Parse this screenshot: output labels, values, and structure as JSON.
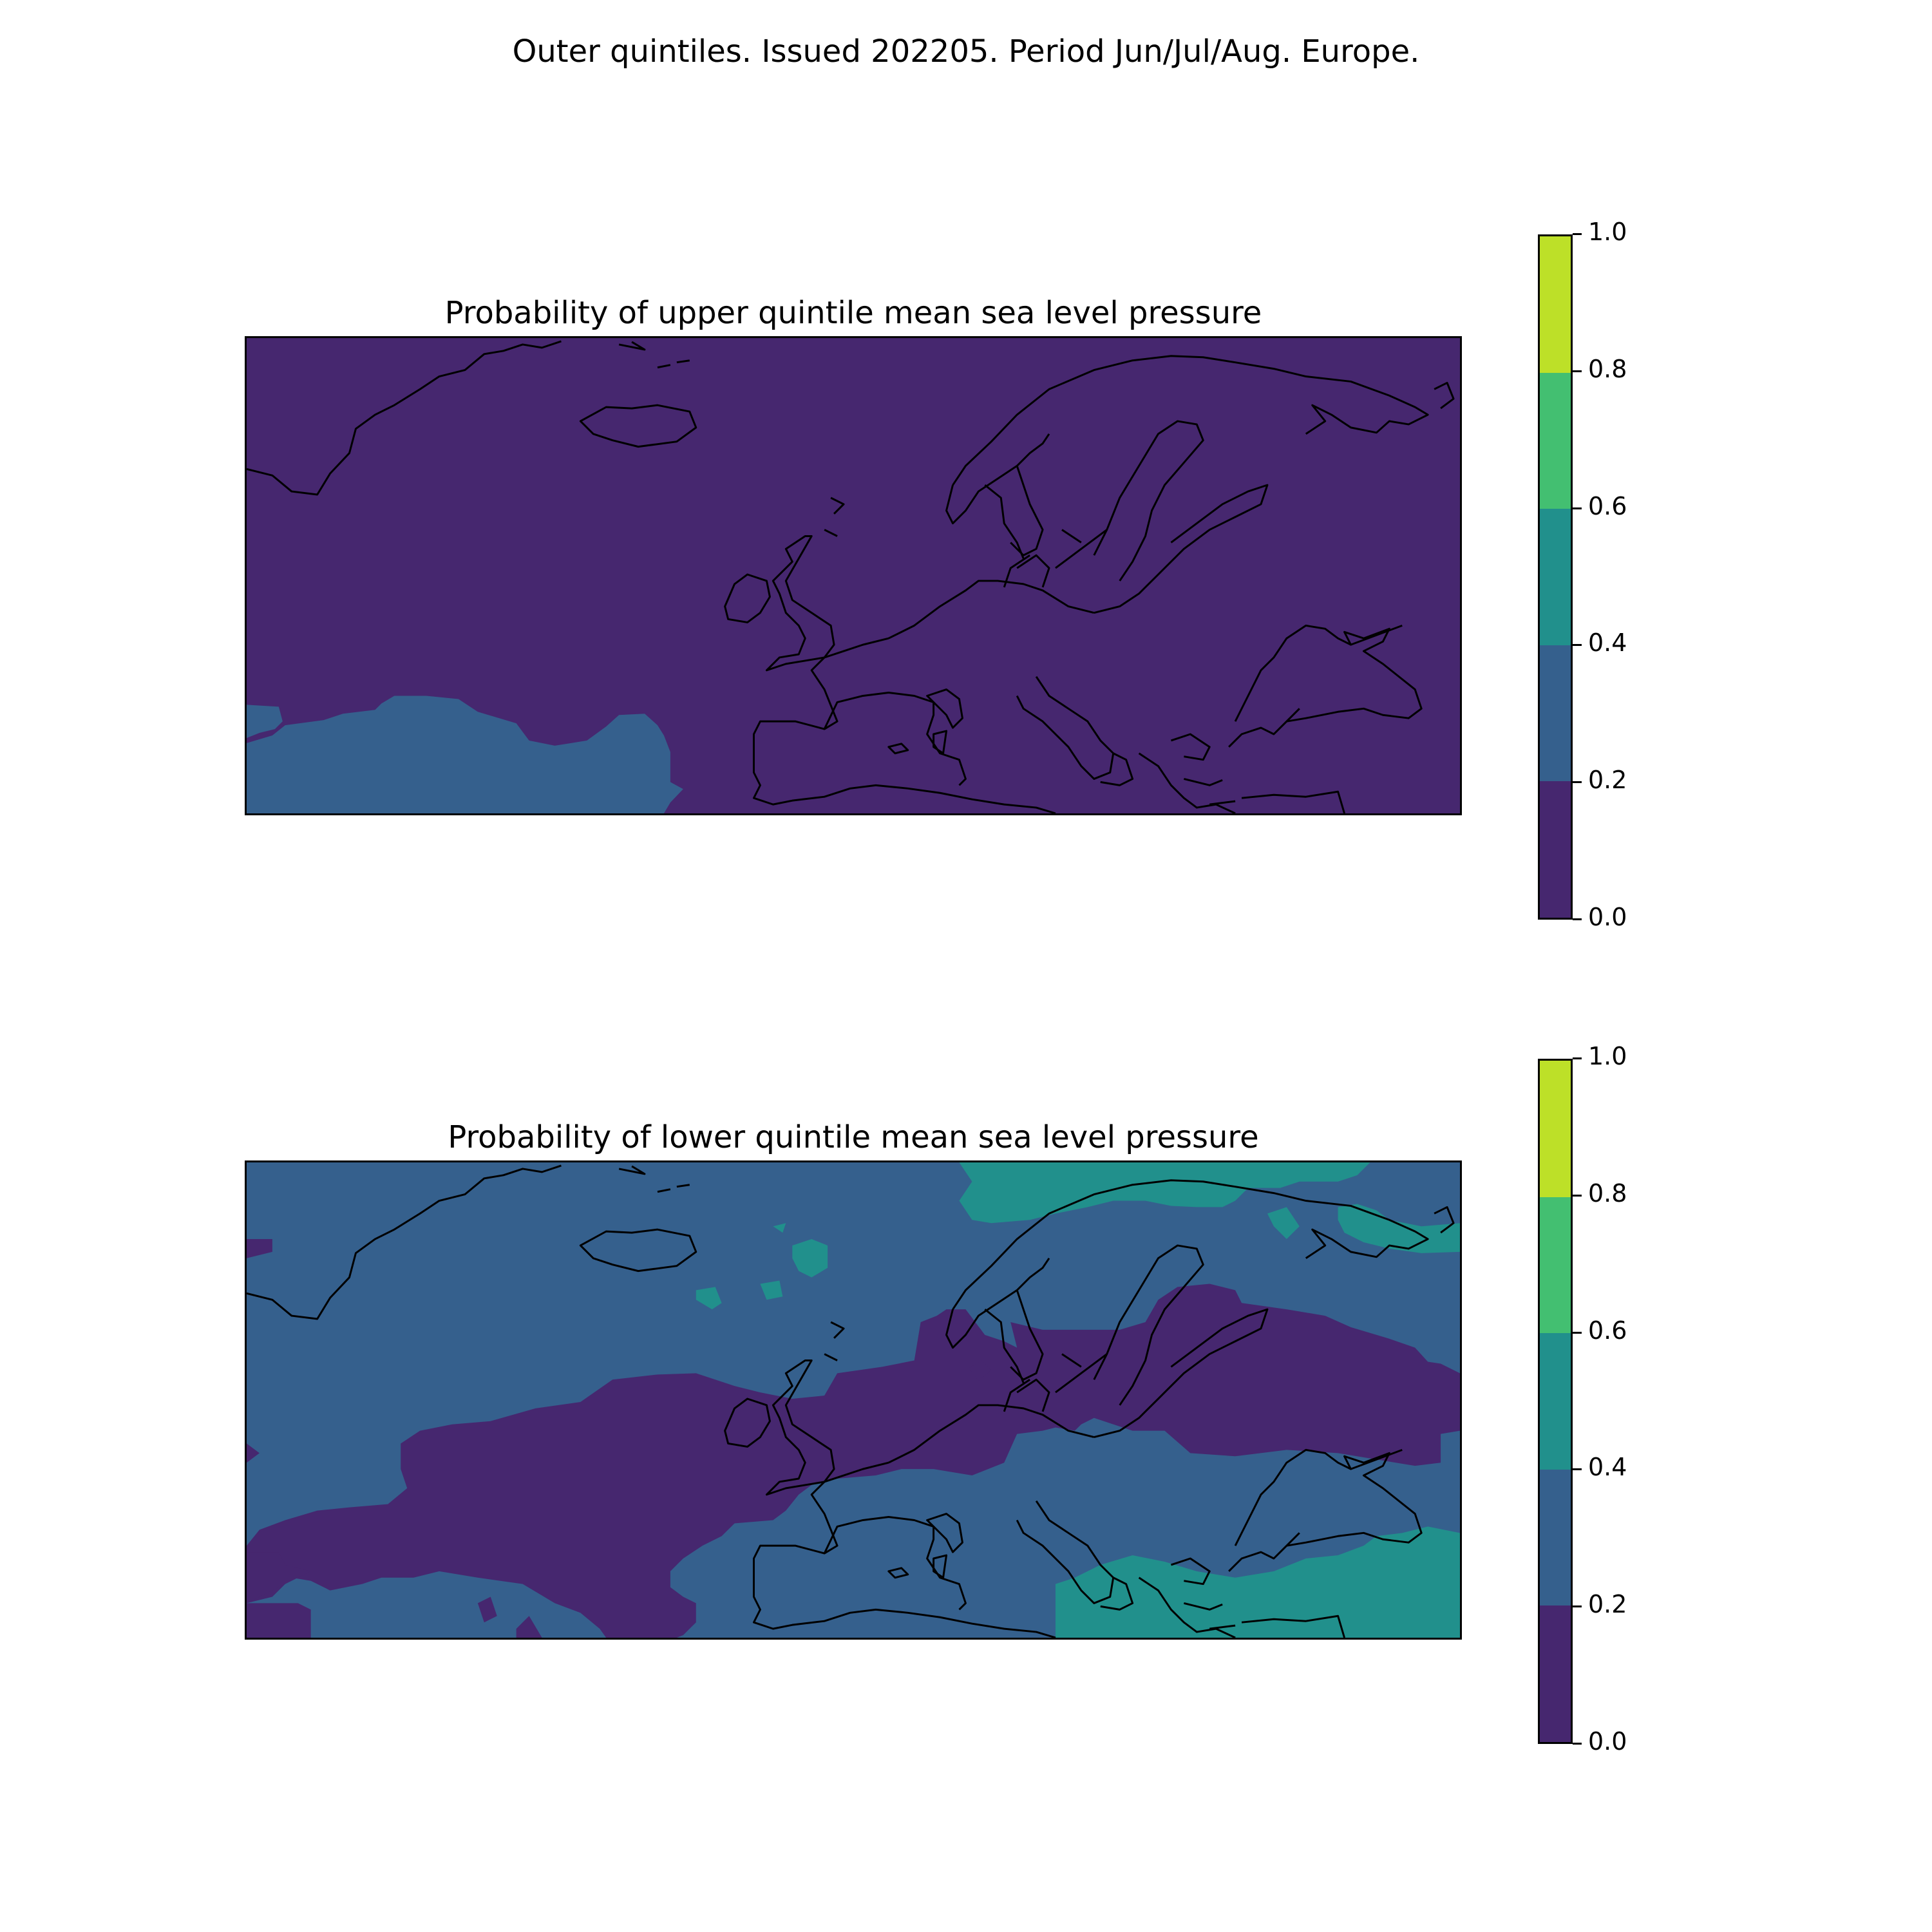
{
  "figure": {
    "suptitle": "Outer quintiles. Issued 202205. Period Jun/Jul/Aug. Europe."
  },
  "colorbar": {
    "ticks": [
      "0.0",
      "0.2",
      "0.4",
      "0.6",
      "0.8",
      "1.0"
    ],
    "levels": [
      0.0,
      0.2,
      0.4,
      0.6,
      0.8,
      1.0
    ],
    "colors": [
      "#46276f",
      "#35608d",
      "#21908c",
      "#43bf71",
      "#bde028"
    ]
  },
  "panels": [
    {
      "id": "upper",
      "title": "Probability of upper quintile mean sea level pressure"
    },
    {
      "id": "lower",
      "title": "Probability of lower quintile mean sea level pressure"
    }
  ],
  "chart_data": [
    {
      "type": "heatmap",
      "title": "Probability of upper quintile mean sea level pressure",
      "region": "Europe",
      "colorbar_range": [
        0.0,
        1.0
      ],
      "colorbar_levels": [
        0.0,
        0.2,
        0.4,
        0.6,
        0.8,
        1.0
      ],
      "description_bins": {
        "dominant": "0.0-0.2",
        "southwest_ocean": "0.2-0.4"
      }
    },
    {
      "type": "heatmap",
      "title": "Probability of lower quintile mean sea level pressure",
      "region": "Europe",
      "colorbar_range": [
        0.0,
        1.0
      ],
      "colorbar_levels": [
        0.0,
        0.2,
        0.4,
        0.6,
        0.8,
        1.0
      ],
      "description_bins": {
        "dominant": "0.2-0.4",
        "central_band": "0.0-0.2",
        "southeast_and_north": "0.4-0.6"
      }
    }
  ]
}
